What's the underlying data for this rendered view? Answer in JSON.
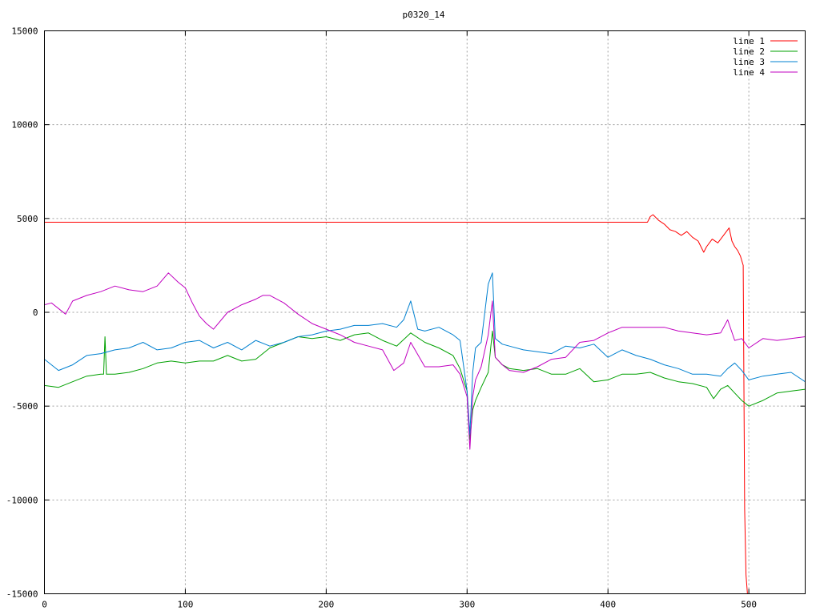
{
  "chart_data": {
    "type": "line",
    "title": "p0320_14",
    "xlabel": "",
    "ylabel": "",
    "xlim": [
      0,
      540
    ],
    "ylim": [
      -15000,
      15000
    ],
    "xticks": [
      0,
      100,
      200,
      300,
      400,
      500
    ],
    "yticks": [
      -15000,
      -10000,
      -5000,
      0,
      5000,
      10000,
      15000
    ],
    "grid": true,
    "legend_position": "top-right",
    "series": [
      {
        "name": "line 1",
        "color": "#ff0000",
        "x": [
          0,
          100,
          200,
          300,
          400,
          428,
          430,
          432,
          436,
          440,
          444,
          448,
          452,
          456,
          460,
          464,
          468,
          470,
          474,
          478,
          482,
          486,
          488,
          490,
          492,
          494,
          496,
          497,
          498,
          499,
          500
        ],
        "y": [
          4800,
          4800,
          4800,
          4800,
          4800,
          4800,
          5100,
          5200,
          4900,
          4700,
          4400,
          4300,
          4100,
          4300,
          4000,
          3800,
          3200,
          3500,
          3900,
          3700,
          4100,
          4500,
          3800,
          3500,
          3300,
          3000,
          2500,
          -10500,
          -14000,
          -15000,
          -15000
        ]
      },
      {
        "name": "line 2",
        "color": "#00a000",
        "x": [
          0,
          10,
          20,
          30,
          40,
          42,
          43,
          44,
          50,
          60,
          70,
          80,
          90,
          100,
          110,
          120,
          130,
          140,
          150,
          160,
          170,
          180,
          190,
          200,
          210,
          220,
          230,
          240,
          250,
          260,
          270,
          280,
          290,
          295,
          300,
          302,
          304,
          306,
          310,
          315,
          318,
          320,
          325,
          330,
          340,
          350,
          360,
          370,
          380,
          390,
          400,
          410,
          420,
          430,
          440,
          450,
          460,
          470,
          475,
          480,
          485,
          490,
          495,
          500,
          510,
          520,
          530,
          540
        ],
        "y": [
          -3900,
          -4000,
          -3700,
          -3400,
          -3300,
          -3300,
          -1300,
          -3300,
          -3300,
          -3200,
          -3000,
          -2700,
          -2600,
          -2700,
          -2600,
          -2600,
          -2300,
          -2600,
          -2500,
          -1900,
          -1600,
          -1300,
          -1400,
          -1300,
          -1500,
          -1200,
          -1100,
          -1500,
          -1800,
          -1100,
          -1600,
          -1900,
          -2300,
          -3000,
          -4200,
          -6800,
          -5200,
          -4700,
          -4000,
          -3200,
          -1000,
          -2400,
          -2800,
          -3000,
          -3100,
          -3000,
          -3300,
          -3300,
          -3000,
          -3700,
          -3600,
          -3300,
          -3300,
          -3200,
          -3500,
          -3700,
          -3800,
          -4000,
          -4600,
          -4100,
          -3900,
          -4300,
          -4700,
          -5000,
          -4700,
          -4300,
          -4200,
          -4100
        ]
      },
      {
        "name": "line 3",
        "color": "#0080d0",
        "x": [
          0,
          10,
          20,
          30,
          40,
          50,
          60,
          70,
          80,
          90,
          100,
          110,
          120,
          130,
          140,
          150,
          160,
          170,
          180,
          190,
          200,
          210,
          220,
          230,
          240,
          250,
          255,
          260,
          265,
          270,
          280,
          290,
          295,
          300,
          302,
          304,
          306,
          310,
          315,
          318,
          320,
          325,
          330,
          340,
          350,
          360,
          370,
          380,
          390,
          400,
          410,
          420,
          430,
          440,
          450,
          460,
          470,
          480,
          485,
          490,
          495,
          500,
          510,
          520,
          530,
          540
        ],
        "y": [
          -2500,
          -3100,
          -2800,
          -2300,
          -2200,
          -2000,
          -1900,
          -1600,
          -2000,
          -1900,
          -1600,
          -1500,
          -1900,
          -1600,
          -2000,
          -1500,
          -1800,
          -1600,
          -1300,
          -1200,
          -1000,
          -900,
          -700,
          -700,
          -600,
          -800,
          -400,
          600,
          -900,
          -1000,
          -800,
          -1200,
          -1500,
          -4200,
          -6500,
          -3200,
          -1900,
          -1600,
          1500,
          2100,
          -1400,
          -1700,
          -1800,
          -2000,
          -2100,
          -2200,
          -1800,
          -1900,
          -1700,
          -2400,
          -2000,
          -2300,
          -2500,
          -2800,
          -3000,
          -3300,
          -3300,
          -3400,
          -3000,
          -2700,
          -3100,
          -3600,
          -3400,
          -3300,
          -3200,
          -3700
        ]
      },
      {
        "name": "line 4",
        "color": "#c000c0",
        "x": [
          0,
          5,
          10,
          15,
          20,
          30,
          40,
          50,
          60,
          70,
          80,
          88,
          95,
          100,
          105,
          110,
          115,
          120,
          130,
          140,
          150,
          155,
          160,
          170,
          180,
          190,
          200,
          210,
          220,
          230,
          240,
          248,
          255,
          260,
          270,
          280,
          290,
          295,
          300,
          302,
          304,
          306,
          310,
          315,
          318,
          320,
          325,
          330,
          340,
          350,
          360,
          370,
          380,
          390,
          400,
          410,
          420,
          430,
          440,
          450,
          460,
          470,
          480,
          485,
          490,
          495,
          500,
          510,
          520,
          530,
          540
        ],
        "y": [
          400,
          500,
          200,
          -100,
          600,
          900,
          1100,
          1400,
          1200,
          1100,
          1400,
          2100,
          1600,
          1300,
          500,
          -200,
          -600,
          -900,
          0,
          400,
          700,
          900,
          900,
          500,
          -100,
          -600,
          -900,
          -1200,
          -1600,
          -1800,
          -2000,
          -3100,
          -2700,
          -1600,
          -2900,
          -2900,
          -2800,
          -3300,
          -4500,
          -7300,
          -4500,
          -3600,
          -2900,
          -1200,
          600,
          -2400,
          -2800,
          -3100,
          -3200,
          -2900,
          -2500,
          -2400,
          -1600,
          -1500,
          -1100,
          -800,
          -800,
          -800,
          -800,
          -1000,
          -1100,
          -1200,
          -1100,
          -400,
          -1500,
          -1400,
          -1900,
          -1400,
          -1500,
          -1400,
          -1300
        ]
      }
    ]
  }
}
